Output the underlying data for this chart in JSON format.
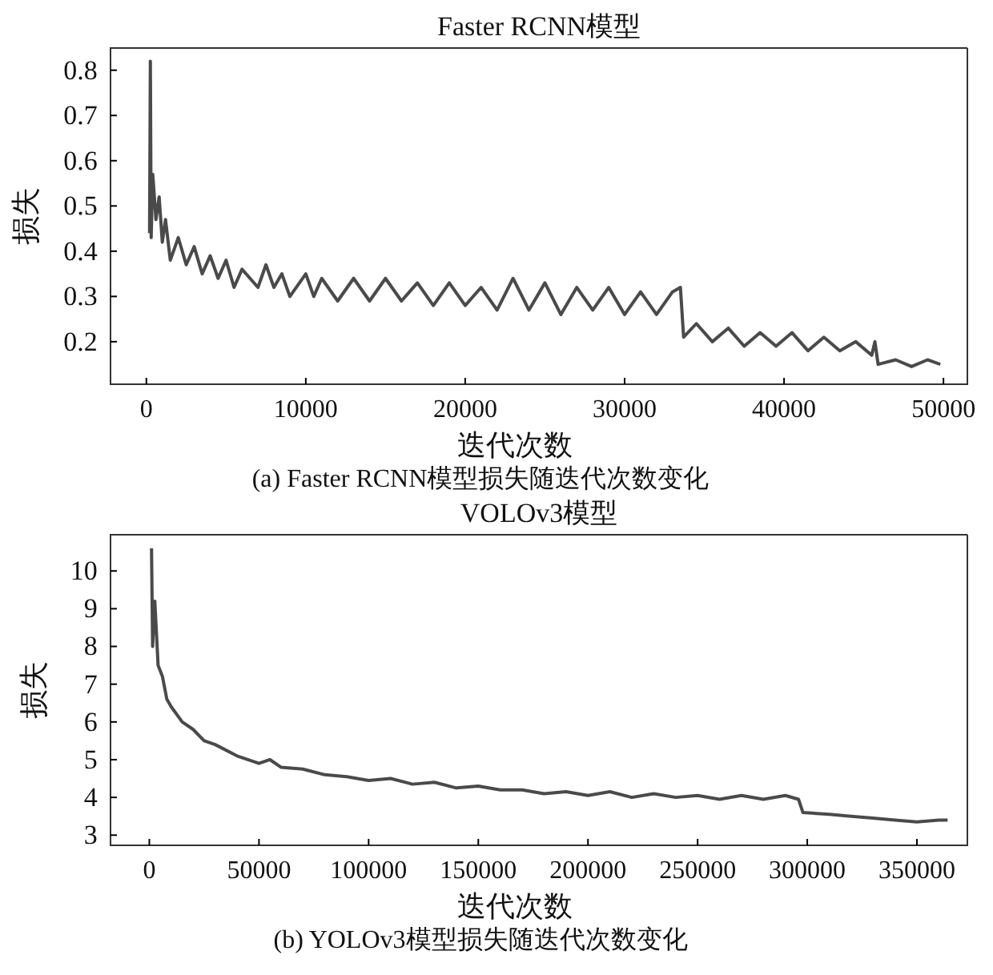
{
  "chart_data": [
    {
      "type": "line",
      "title": "Faster RCNN模型",
      "xlabel": "迭代次数",
      "ylabel": "损失",
      "annotations": [
        "(a) Faster RCNN模型损失随迭代次数变化"
      ],
      "xlim": [
        -2250,
        51500
      ],
      "ylim": [
        0.106,
        0.849
      ],
      "xticks": [
        0,
        10000,
        20000,
        30000,
        40000,
        50000
      ],
      "yticks": [
        0.2,
        0.3,
        0.4,
        0.5,
        0.6,
        0.7,
        0.8
      ],
      "grid": false,
      "marker": "none",
      "line_style": "solid",
      "series": [
        {
          "color": "#4a4a4a",
          "x": [
            200,
            250,
            300,
            400,
            600,
            800,
            1000,
            1200,
            1500,
            2000,
            2500,
            3000,
            3500,
            4000,
            4500,
            5000,
            5500,
            6000,
            7000,
            7500,
            8000,
            8500,
            9000,
            10000,
            10500,
            11000,
            12000,
            13000,
            14000,
            15000,
            16000,
            17000,
            18000,
            19000,
            20000,
            21000,
            22000,
            23000,
            24000,
            25000,
            26000,
            27000,
            28000,
            29000,
            30000,
            31000,
            32000,
            33000,
            33500,
            33700,
            34500,
            35500,
            36500,
            37500,
            38500,
            39500,
            40500,
            41500,
            42500,
            43500,
            44500,
            45500,
            45700,
            45900,
            47000,
            48000,
            49000,
            49800
          ],
          "values": [
            0.44,
            0.82,
            0.43,
            0.57,
            0.47,
            0.52,
            0.42,
            0.47,
            0.38,
            0.43,
            0.37,
            0.41,
            0.35,
            0.39,
            0.34,
            0.38,
            0.32,
            0.36,
            0.32,
            0.37,
            0.32,
            0.35,
            0.3,
            0.35,
            0.3,
            0.34,
            0.29,
            0.34,
            0.29,
            0.34,
            0.29,
            0.33,
            0.28,
            0.33,
            0.28,
            0.32,
            0.27,
            0.34,
            0.27,
            0.33,
            0.26,
            0.32,
            0.27,
            0.32,
            0.26,
            0.31,
            0.26,
            0.31,
            0.32,
            0.21,
            0.24,
            0.2,
            0.23,
            0.19,
            0.22,
            0.19,
            0.22,
            0.18,
            0.21,
            0.18,
            0.2,
            0.17,
            0.2,
            0.15,
            0.16,
            0.145,
            0.16,
            0.15
          ]
        }
      ]
    },
    {
      "type": "line",
      "title": "VOLOv3模型",
      "xlabel": "迭代次数",
      "ylabel": "损失",
      "annotations": [
        "(b) YOLOv3模型损失随迭代次数变化"
      ],
      "xlim": [
        -17700,
        373000
      ],
      "ylim": [
        2.73,
        10.96
      ],
      "xticks": [
        0,
        50000,
        100000,
        150000,
        200000,
        250000,
        300000,
        350000
      ],
      "yticks": [
        3,
        4,
        5,
        6,
        7,
        8,
        9,
        10
      ],
      "grid": false,
      "marker": "none",
      "line_style": "solid",
      "series": [
        {
          "color": "#4a4a4a",
          "x": [
            1000,
            1500,
            2500,
            4000,
            6000,
            8000,
            10000,
            15000,
            20000,
            25000,
            30000,
            40000,
            50000,
            55000,
            60000,
            70000,
            80000,
            90000,
            100000,
            110000,
            120000,
            130000,
            140000,
            150000,
            160000,
            170000,
            180000,
            190000,
            200000,
            210000,
            220000,
            230000,
            240000,
            250000,
            260000,
            270000,
            280000,
            290000,
            296000,
            298000,
            310000,
            320000,
            330000,
            340000,
            350000,
            360000,
            364000
          ],
          "values": [
            10.6,
            8,
            9.2,
            7.5,
            7.2,
            6.6,
            6.4,
            6.0,
            5.8,
            5.5,
            5.4,
            5.1,
            4.9,
            5.0,
            4.8,
            4.75,
            4.6,
            4.55,
            4.45,
            4.5,
            4.35,
            4.4,
            4.25,
            4.3,
            4.2,
            4.2,
            4.1,
            4.15,
            4.05,
            4.15,
            4.0,
            4.1,
            4.0,
            4.05,
            3.95,
            4.05,
            3.95,
            4.05,
            3.95,
            3.6,
            3.55,
            3.5,
            3.45,
            3.4,
            3.35,
            3.4,
            3.4
          ]
        }
      ]
    }
  ]
}
